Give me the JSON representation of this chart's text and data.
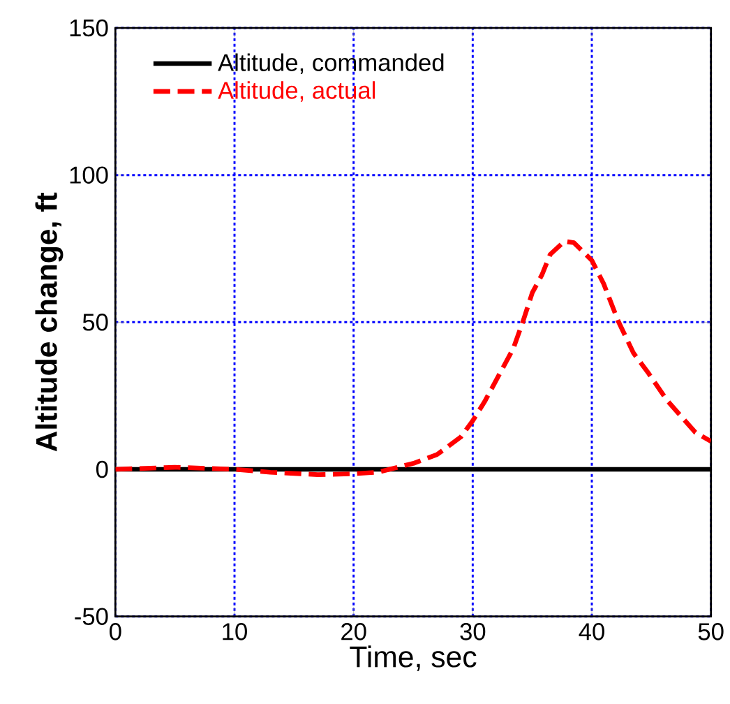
{
  "chart_data": {
    "type": "line",
    "xlabel": "Time, sec",
    "ylabel": "Altitude change, ft",
    "xlim": [
      0,
      50
    ],
    "ylim": [
      -50,
      150
    ],
    "xticks": [
      0,
      10,
      20,
      30,
      40,
      50
    ],
    "yticks": [
      -50,
      0,
      50,
      100,
      150
    ],
    "grid": true,
    "legend": "top left",
    "marker": "none",
    "series": [
      {
        "name": "Altitude, commanded",
        "color": "#000000",
        "line_style": "solid",
        "x": [
          0,
          50
        ],
        "values": [
          0,
          0
        ]
      },
      {
        "name": "Altitude, actual",
        "color": "#ff0000",
        "line_style": "dashed",
        "x": [
          0,
          5,
          10,
          13,
          17,
          20,
          22,
          23,
          25,
          27,
          29,
          30,
          31,
          31.8,
          32.6,
          33.4,
          34.2,
          35,
          35.8,
          36.5,
          37.7,
          38.5,
          40,
          41,
          42.2,
          43.5,
          44.7,
          46.3,
          48.7,
          50
        ],
        "values": [
          0,
          0.7,
          0,
          -1,
          -1.8,
          -1.5,
          -1,
          0,
          2,
          5,
          11,
          16.5,
          23,
          29,
          35,
          41,
          50,
          60,
          66,
          73,
          77.5,
          77,
          71,
          63,
          50.5,
          39.5,
          33,
          23.5,
          12.5,
          9.5
        ]
      }
    ]
  }
}
